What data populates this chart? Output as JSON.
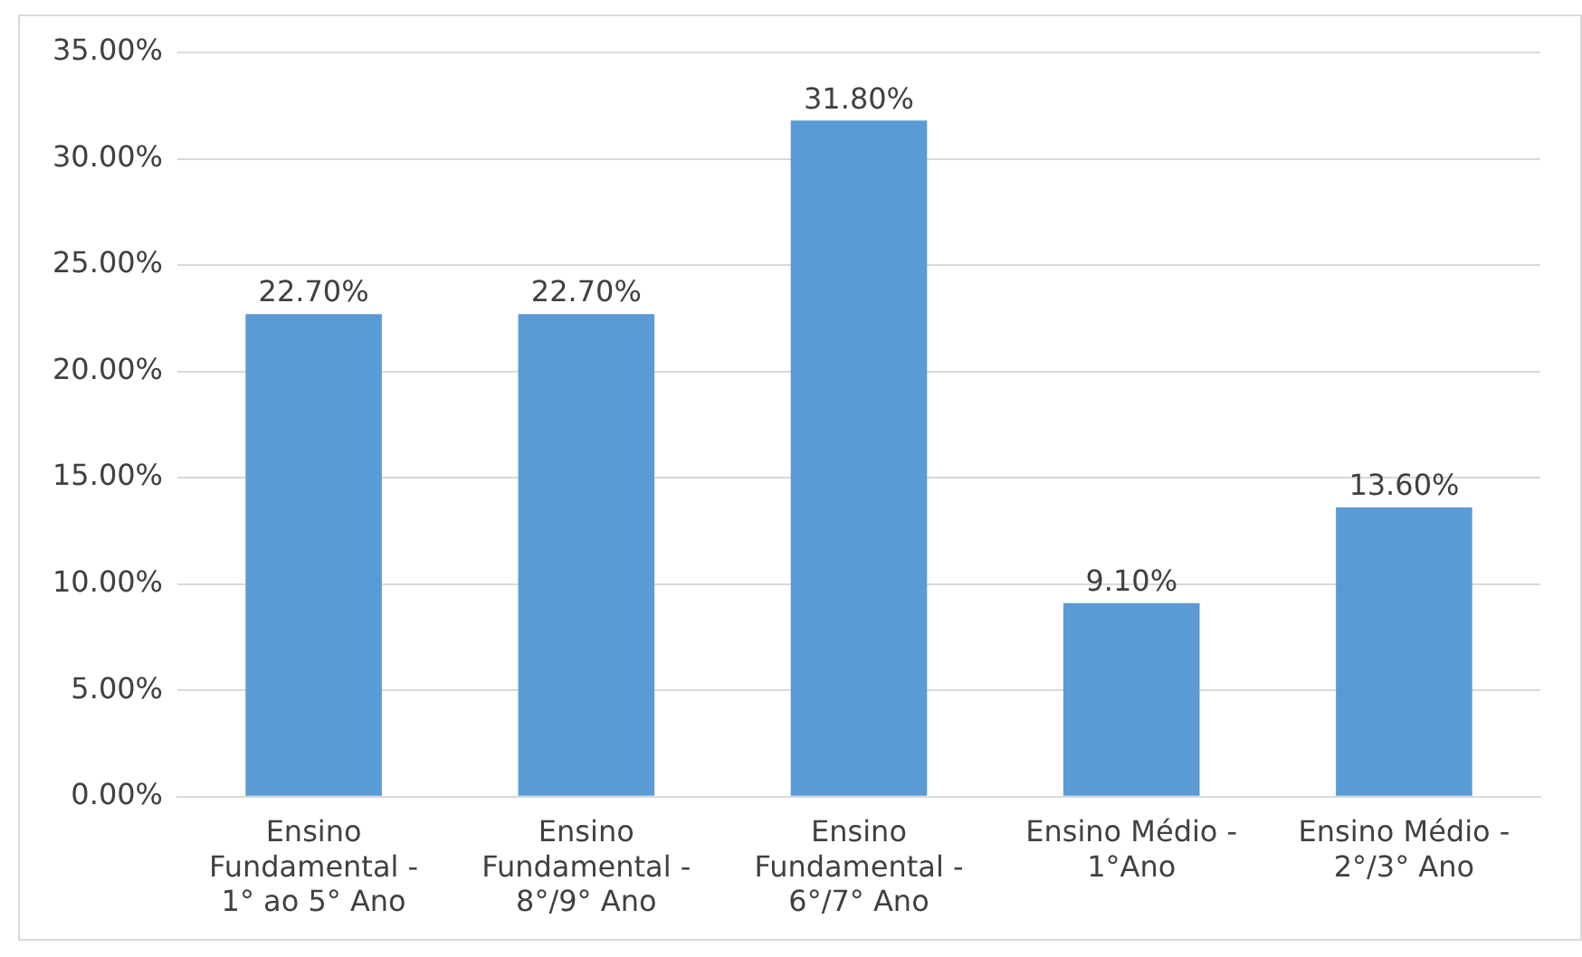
{
  "chart_data": {
    "type": "bar",
    "categories": [
      "Ensino Fundamental - 1° ao 5° Ano",
      "Ensino Fundamental - 8°/9° Ano",
      "Ensino Fundamental - 6°/7° Ano",
      "Ensino Médio - 1°Ano",
      "Ensino Médio - 2°/3° Ano"
    ],
    "values": [
      22.7,
      22.7,
      31.8,
      9.1,
      13.6
    ],
    "value_labels": [
      "22.70%",
      "22.70%",
      "31.80%",
      "9.10%",
      "13.60%"
    ],
    "color": "#5b9bd5",
    "ylim": [
      0,
      35
    ],
    "yticks": [
      {
        "value": 0,
        "label": "0.00%"
      },
      {
        "value": 5,
        "label": "5.00%"
      },
      {
        "value": 10,
        "label": "10.00%"
      },
      {
        "value": 15,
        "label": "15.00%"
      },
      {
        "value": 20,
        "label": "20.00%"
      },
      {
        "value": 25,
        "label": "25.00%"
      },
      {
        "value": 30,
        "label": "30.00%"
      },
      {
        "value": 35,
        "label": "35.00%"
      }
    ],
    "grid": "y",
    "legend": false
  }
}
